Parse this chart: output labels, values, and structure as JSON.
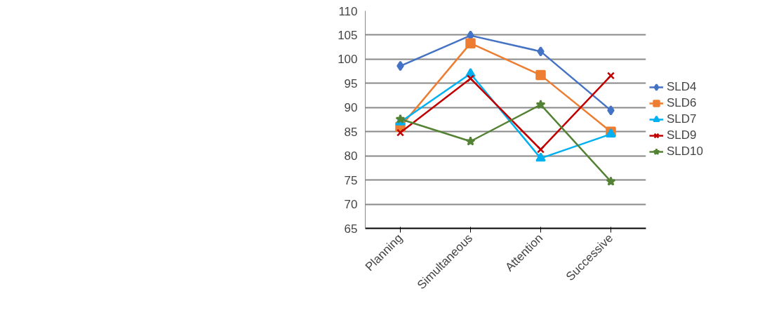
{
  "chart_data": {
    "type": "line",
    "categories": [
      "Planning",
      "Simultaneous",
      "Attention",
      "Successive"
    ],
    "series": [
      {
        "name": "SLD4",
        "color": "#4472c4",
        "marker": "diamond",
        "values": [
          98.6,
          104.9,
          101.6,
          89.4
        ]
      },
      {
        "name": "SLD6",
        "color": "#ed7d31",
        "marker": "square",
        "values": [
          86.0,
          103.3,
          96.7,
          85.0
        ]
      },
      {
        "name": "SLD7",
        "color": "#00b0f0",
        "marker": "triangle",
        "values": [
          87.0,
          97.0,
          79.5,
          84.5
        ]
      },
      {
        "name": "SLD9",
        "color": "#c00000",
        "marker": "cross",
        "values": [
          84.8,
          96.0,
          81.3,
          96.6
        ]
      },
      {
        "name": "SLD10",
        "color": "#548235",
        "marker": "star",
        "values": [
          87.6,
          83.0,
          90.6,
          74.7
        ]
      }
    ],
    "ylim": [
      65,
      110
    ],
    "yticks": [
      65,
      70,
      75,
      80,
      85,
      90,
      95,
      100,
      105,
      110
    ],
    "grid": "y",
    "legend": "right",
    "line_style": "solid"
  }
}
